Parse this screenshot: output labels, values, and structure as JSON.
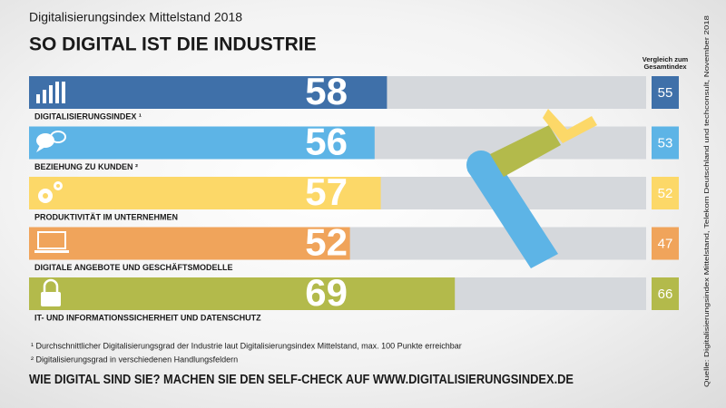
{
  "chart_data": {
    "type": "bar",
    "supertitle": "Digitalisierungsindex Mittelstand 2018",
    "title": "SO DIGITAL IST DIE INDUSTRIE",
    "categories": [
      "DIGITALISIERUNGSINDEX ¹",
      "BEZIEHUNG ZU KUNDEN ²",
      "PRODUKTIVITÄT IM UNTERNEHMEN",
      "DIGITALE ANGEBOTE UND GESCHÄFTSMODELLE",
      "IT- UND INFORMATIONSSICHERHEIT UND DATENSCHUTZ"
    ],
    "values": [
      58,
      56,
      57,
      52,
      69
    ],
    "colors": [
      "#3f70a9",
      "#5db4e6",
      "#fcd868",
      "#f0a45b",
      "#b3ba4b"
    ],
    "xlim": [
      0,
      100
    ],
    "comparison": {
      "label": "Vergleich zum Gesamtindex",
      "values": [
        55,
        53,
        52,
        47,
        66
      ]
    },
    "footnotes": [
      "¹ Durchschnittlicher Digitalisierungsgrad der Industrie laut Digitalisierungsindex Mittelstand, max. 100 Punkte erreichbar",
      "² Digitalisierungsgrad in verschiedenen Handlungsfeldern"
    ],
    "call_to_action": "WIE DIGITAL SIND SIE? MACHEN SIE DEN SELF-CHECK AUF WWW.DIGITALISIERUNGSINDEX.DE",
    "source": "Quelle: Digitalisierungsindex Mittelstand, Telekom Deutschland und techconsult, November 2018"
  }
}
